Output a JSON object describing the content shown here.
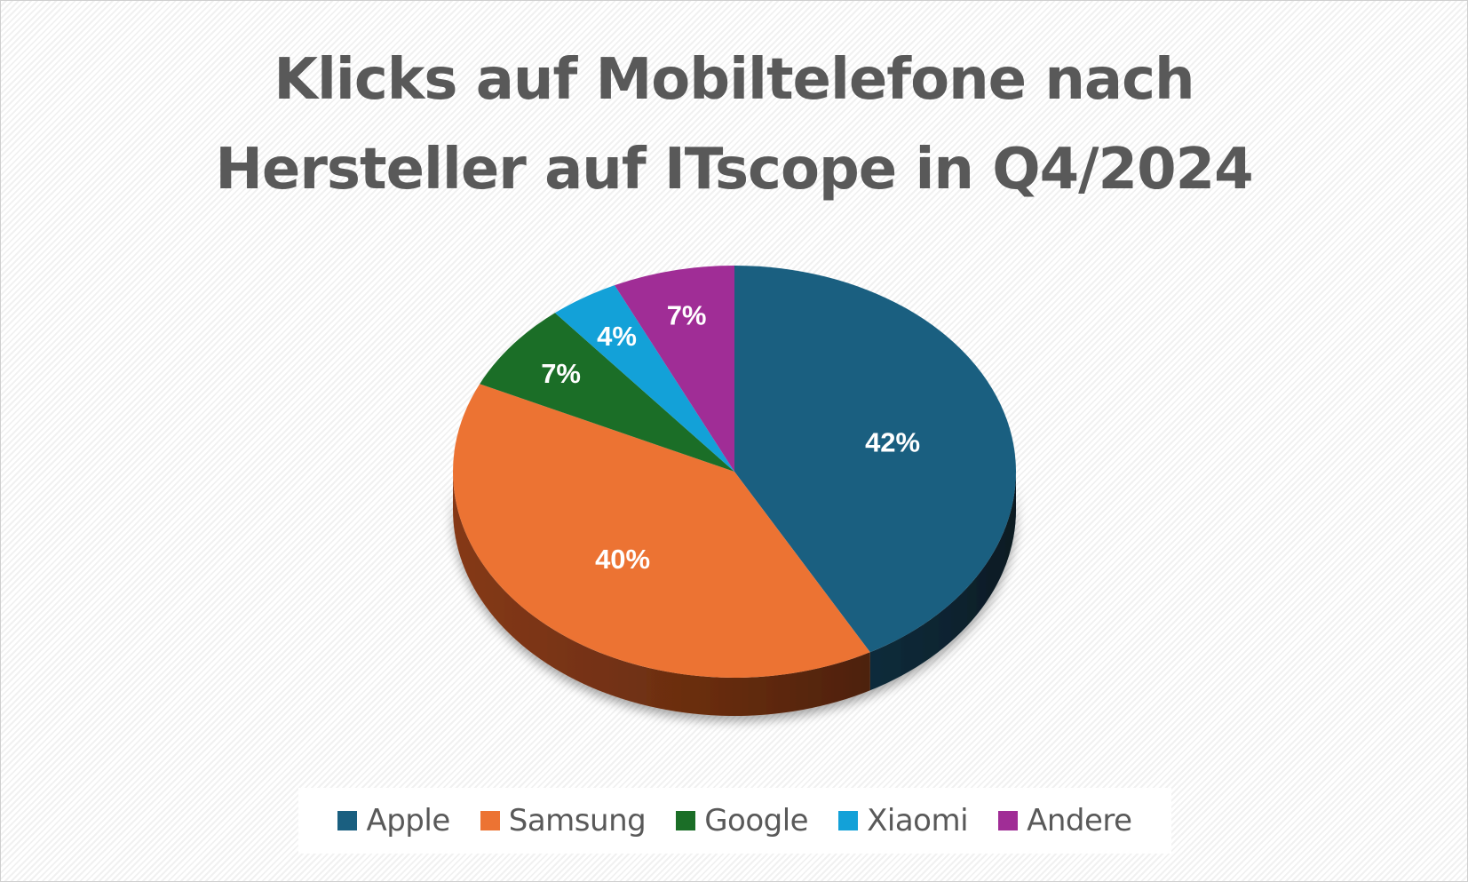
{
  "chart_data": {
    "type": "pie",
    "title_lines": [
      "Klicks auf Mobiltelefone nach",
      "Hersteller auf ITscope in Q4/2024"
    ],
    "slices": [
      {
        "name": "Apple",
        "value": 42,
        "label": "42%",
        "color": "#1a5f80",
        "side_color": "#0d2e3e"
      },
      {
        "name": "Samsung",
        "value": 40,
        "label": "40%",
        "color": "#ec7333",
        "side_color": "#8c3c16"
      },
      {
        "name": "Google",
        "value": 7,
        "label": "7%",
        "color": "#1b6e27",
        "side_color": "#0d3a14"
      },
      {
        "name": "Xiaomi",
        "value": 4,
        "label": "4%",
        "color": "#13a1d8",
        "side_color": "#0a5470"
      },
      {
        "name": "Andere",
        "value": 7,
        "label": "7%",
        "color": "#a02d96",
        "side_color": "#55184f"
      }
    ],
    "style": "3d-pie",
    "legend_position": "bottom"
  }
}
